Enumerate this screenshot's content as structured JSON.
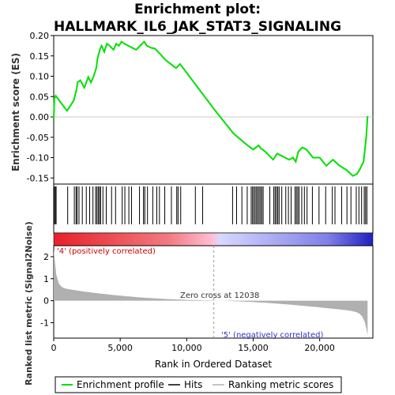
{
  "chart_data": {
    "type": "line",
    "title_line1": "Enrichment plot:",
    "title_line2": "HALLMARK_IL6_JAK_STAT3_SIGNALING",
    "es_ylabel": "Enrichment score (ES)",
    "metric_ylabel_line1": "Ranked list metric (Signal2Noise)",
    "xlabel": "Rank in Ordered Dataset",
    "xlim": [
      0,
      24000
    ],
    "x_ticks": [
      0,
      5000,
      10000,
      15000,
      20000
    ],
    "x_tick_labels": [
      "0",
      "5,000",
      "10,000",
      "15,000",
      "20,000"
    ],
    "es_ylim": [
      -0.165,
      0.2
    ],
    "es_yticks": [
      0.2,
      0.15,
      0.1,
      0.05,
      0.0,
      -0.05,
      -0.1,
      -0.15
    ],
    "es_ytick_labels": [
      "0.20",
      "0.15",
      "0.10",
      "0.05",
      "0.00",
      "-0.05",
      "-0.10",
      "-0.15"
    ],
    "metric_ylim": [
      -1.7,
      2.5
    ],
    "metric_yticks": [
      2,
      1,
      0,
      -1
    ],
    "metric_ytick_labels": [
      "2",
      "1",
      "0",
      "-1"
    ],
    "zero_cross_rank": 12038,
    "zero_cross_label": "Zero cross at 12038",
    "pos_label": "'4' (positively correlated)",
    "neg_label": "'5' (negatively correlated)",
    "series": [
      {
        "name": "Enrichment profile",
        "color": "#00e000",
        "x": [
          0,
          50,
          150,
          1000,
          1500,
          1700,
          1800,
          2000,
          2300,
          2600,
          2800,
          3000,
          3200,
          3300,
          3500,
          3600,
          3800,
          4000,
          4200,
          4500,
          4700,
          4900,
          5100,
          5300,
          5600,
          5900,
          6200,
          6500,
          6800,
          7000,
          7300,
          7600,
          8000,
          8400,
          8800,
          9200,
          9500,
          12038,
          13500,
          14500,
          15000,
          15200,
          15400,
          15600,
          15900,
          16200,
          16500,
          16800,
          17100,
          17400,
          17700,
          18000,
          18200,
          18400,
          18700,
          19000,
          19500,
          20000,
          20500,
          21000,
          21500,
          22000,
          22500,
          22800,
          23000,
          23300,
          23500,
          23600
        ],
        "y": [
          -0.005,
          0.045,
          0.052,
          0.015,
          0.04,
          0.065,
          0.085,
          0.09,
          0.072,
          0.098,
          0.085,
          0.1,
          0.12,
          0.145,
          0.168,
          0.175,
          0.16,
          0.18,
          0.175,
          0.165,
          0.18,
          0.175,
          0.185,
          0.18,
          0.175,
          0.17,
          0.165,
          0.175,
          0.185,
          0.175,
          0.17,
          0.168,
          0.155,
          0.14,
          0.13,
          0.12,
          0.13,
          0.02,
          -0.04,
          -0.068,
          -0.08,
          -0.075,
          -0.07,
          -0.078,
          -0.085,
          -0.095,
          -0.105,
          -0.09,
          -0.095,
          -0.1,
          -0.105,
          -0.1,
          -0.11,
          -0.085,
          -0.075,
          -0.08,
          -0.1,
          -0.1,
          -0.12,
          -0.105,
          -0.12,
          -0.13,
          -0.145,
          -0.14,
          -0.13,
          -0.11,
          -0.05,
          0.002
        ]
      }
    ],
    "hits": [
      40,
      120,
      180,
      1050,
      1550,
      1680,
      1760,
      1900,
      2150,
      2450,
      2700,
      2950,
      3150,
      3250,
      3350,
      3450,
      3520,
      3700,
      3950,
      4350,
      4650,
      5150,
      5350,
      5650,
      5850,
      6450,
      6750,
      6850,
      7050,
      7450,
      7750,
      7950,
      8350,
      8850,
      9250,
      9350,
      9550,
      10650,
      11200,
      13450,
      13750,
      14150,
      14550,
      14850,
      14950,
      15050,
      15150,
      15250,
      15350,
      15450,
      15550,
      15650,
      15750,
      16250,
      16550,
      16650,
      16750,
      16850,
      16950,
      17150,
      17450,
      17650,
      17850,
      18150,
      18250,
      18350,
      18450,
      18650,
      18850,
      19050,
      19450,
      19950,
      20450,
      20950,
      21150,
      21650,
      22050,
      22350,
      22750,
      22950,
      23150,
      23350,
      23450,
      23550
    ],
    "legend": {
      "profile": "Enrichment profile",
      "hits": "Hits",
      "metric": "Ranking metric scores"
    },
    "colors": {
      "profile": "#00e000",
      "hits": "#000000",
      "metric_fill": "#b0b0b0",
      "zero_line": "#b0b0b0",
      "pos_text": "#cc0000",
      "neg_text": "#3333cc",
      "gradient": [
        "#e8202a",
        "#f27a80",
        "#ffc0d8",
        "#d8d8ff",
        "#7f7fe8",
        "#2020c0"
      ]
    }
  }
}
